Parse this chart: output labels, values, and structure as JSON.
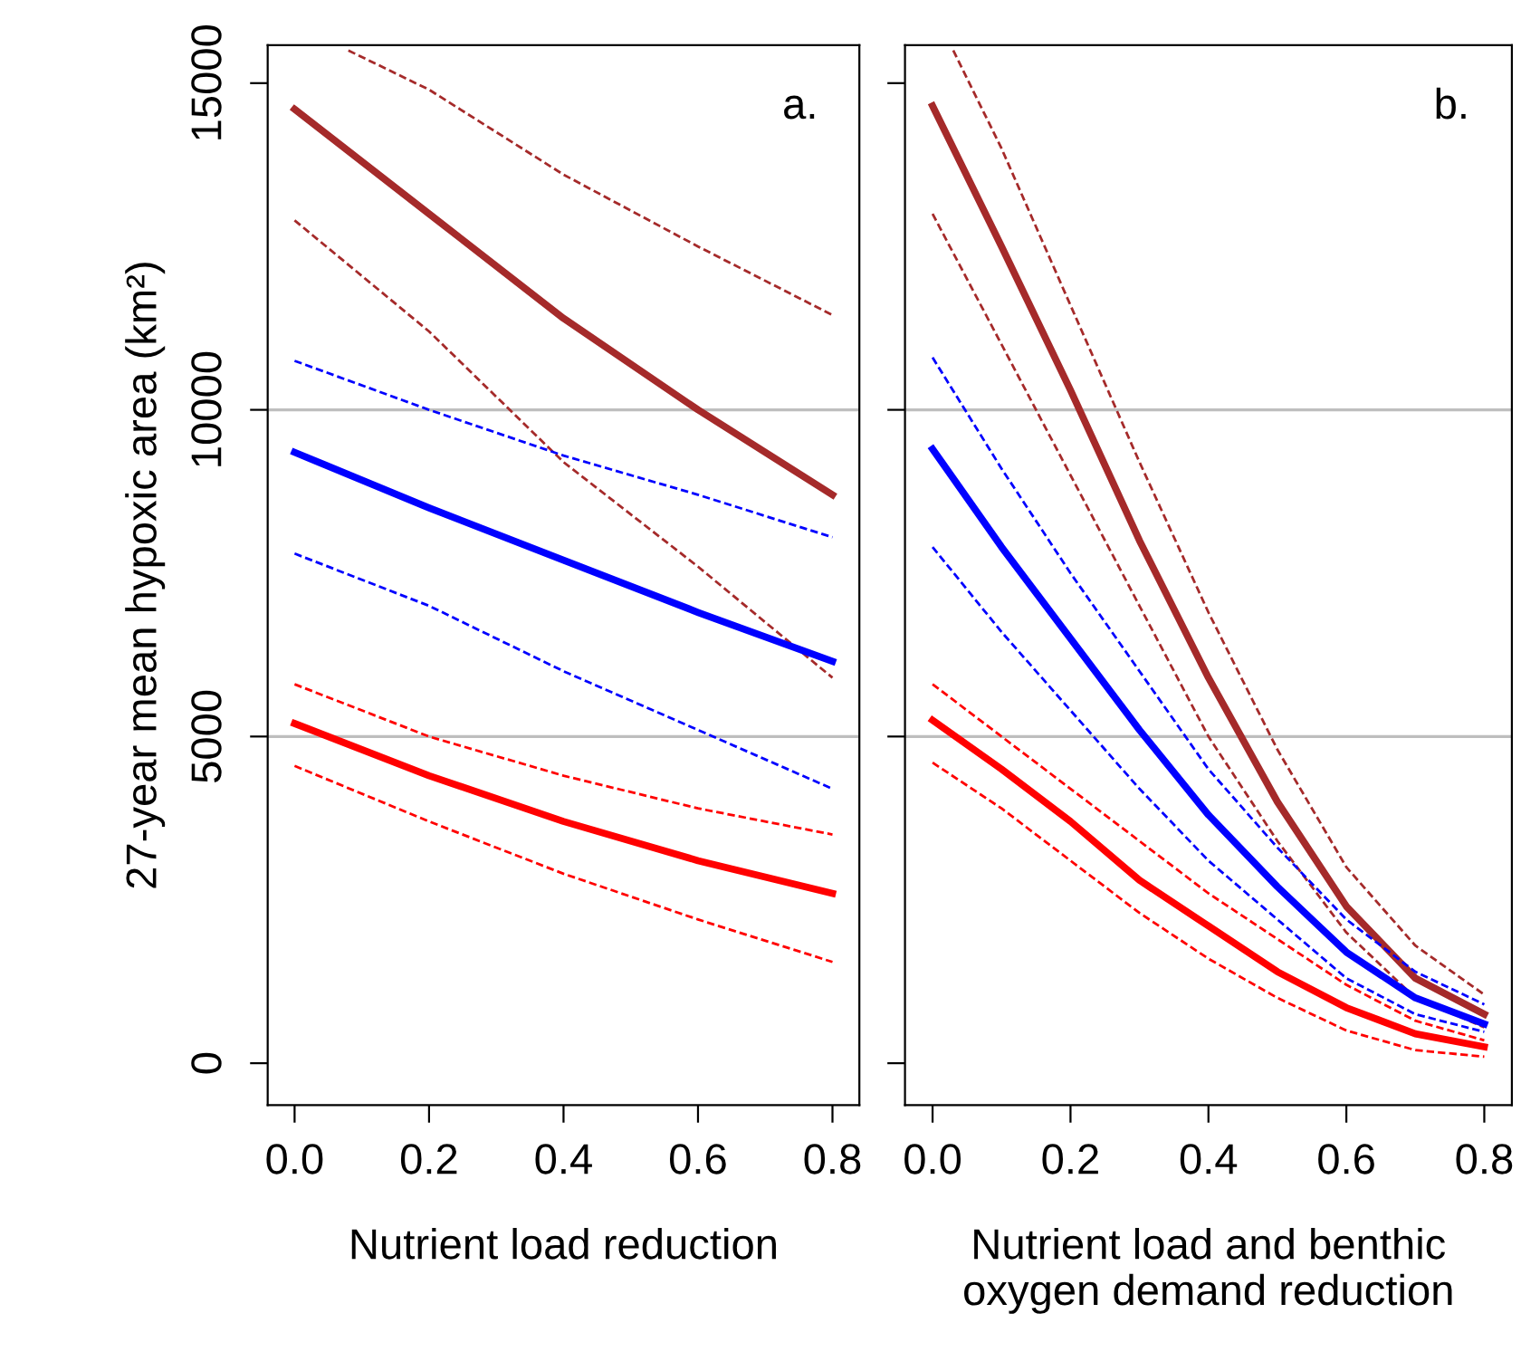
{
  "chart_data": [
    {
      "type": "line",
      "xlabel": "Nutrient load reduction",
      "ylabel": "27-year mean hypoxic area (km²)",
      "annotations": [
        "a."
      ],
      "x": [
        0,
        0.2,
        0.4,
        0.6,
        0.8
      ],
      "xlim": [
        -0.04,
        0.84
      ],
      "ylim": [
        -640,
        15580
      ],
      "xticks": [
        {
          "value": 0,
          "label": "0.0"
        },
        0.2,
        0.4,
        0.6,
        0.8
      ],
      "yticks": [
        0,
        5000,
        10000,
        15000
      ],
      "grid": false,
      "line_style": "solid",
      "marker": "none",
      "ref_lines": [
        {
          "axis": "y",
          "value": 5000,
          "color": "#bebebe"
        },
        {
          "axis": "y",
          "value": 10000,
          "color": "#bebebe"
        }
      ],
      "series": [
        {
          "color": "#a52a2a",
          "values": [
            14600,
            13000,
            11400,
            10000,
            8700
          ]
        },
        {
          "color": "#a52a2a",
          "line_style": "dashed",
          "values": [
            12900,
            11200,
            9200,
            7600,
            5900
          ]
        },
        {
          "color": "#a52a2a",
          "line_style": "dashed",
          "x": [
            0.08,
            0.2,
            0.4,
            0.6,
            0.8
          ],
          "values": [
            15500,
            14900,
            13600,
            12500,
            11450
          ]
        },
        {
          "color": "#0000ff",
          "values": [
            9350,
            8500,
            7700,
            6900,
            6150
          ]
        },
        {
          "color": "#0000ff",
          "line_style": "dashed",
          "values": [
            7800,
            7000,
            6000,
            5100,
            4200
          ]
        },
        {
          "color": "#0000ff",
          "line_style": "dashed",
          "values": [
            10750,
            10000,
            9300,
            8700,
            8050
          ]
        },
        {
          "color": "#ff0000",
          "values": [
            5200,
            4400,
            3700,
            3100,
            2600
          ]
        },
        {
          "color": "#ff0000",
          "line_style": "dashed",
          "values": [
            4550,
            3700,
            2900,
            2200,
            1550
          ]
        },
        {
          "color": "#ff0000",
          "line_style": "dashed",
          "values": [
            5800,
            5000,
            4400,
            3900,
            3500
          ]
        }
      ]
    },
    {
      "type": "line",
      "xlabel": "Nutrient load and benthic oxygen demand reduction",
      "annotations": [
        "b."
      ],
      "x": [
        0,
        0.1,
        0.2,
        0.3,
        0.4,
        0.5,
        0.6,
        0.7,
        0.8
      ],
      "xlim": [
        -0.04,
        0.84
      ],
      "ylim": [
        -640,
        15580
      ],
      "xticks": [
        {
          "value": 0,
          "label": "0.0"
        },
        0.2,
        0.4,
        0.6,
        0.8
      ],
      "yticks": [
        0,
        5000,
        10000,
        15000
      ],
      "tick_labels": "x",
      "grid": false,
      "line_style": "solid",
      "marker": "none",
      "ref_lines": [
        {
          "axis": "y",
          "value": 5000,
          "color": "#bebebe"
        },
        {
          "axis": "y",
          "value": 10000,
          "color": "#bebebe"
        }
      ],
      "series": [
        {
          "color": "#a52a2a",
          "values": [
            14650,
            12500,
            10300,
            8000,
            5900,
            4000,
            2400,
            1300,
            750
          ]
        },
        {
          "color": "#a52a2a",
          "line_style": "dashed",
          "values": [
            13000,
            11000,
            9000,
            7000,
            5000,
            3400,
            2000,
            1000,
            550
          ]
        },
        {
          "color": "#a52a2a",
          "line_style": "dashed",
          "x": [
            0.03,
            0.1,
            0.2,
            0.3,
            0.4,
            0.5,
            0.6,
            0.7,
            0.8
          ],
          "values": [
            15500,
            14000,
            11600,
            9200,
            6900,
            4800,
            3000,
            1800,
            1050
          ]
        },
        {
          "color": "#0000ff",
          "values": [
            9400,
            7900,
            6500,
            5100,
            3800,
            2700,
            1700,
            1000,
            600
          ]
        },
        {
          "color": "#0000ff",
          "line_style": "dashed",
          "values": [
            7900,
            6600,
            5400,
            4200,
            3100,
            2200,
            1300,
            750,
            480
          ]
        },
        {
          "color": "#0000ff",
          "line_style": "dashed",
          "values": [
            10800,
            9100,
            7500,
            6000,
            4500,
            3300,
            2200,
            1400,
            900
          ]
        },
        {
          "color": "#ff0000",
          "values": [
            5250,
            4500,
            3700,
            2800,
            2100,
            1400,
            850,
            450,
            250
          ]
        },
        {
          "color": "#ff0000",
          "line_style": "dashed",
          "values": [
            4600,
            3900,
            3100,
            2300,
            1600,
            1000,
            500,
            200,
            100
          ]
        },
        {
          "color": "#ff0000",
          "line_style": "dashed",
          "values": [
            5800,
            5000,
            4200,
            3400,
            2600,
            1900,
            1200,
            650,
            350
          ]
        }
      ]
    }
  ]
}
